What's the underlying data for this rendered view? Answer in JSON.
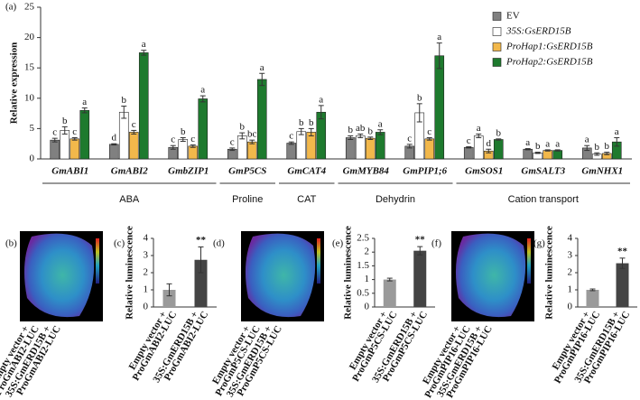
{
  "chart_data": [
    {
      "type": "bar",
      "panel_label": "(a)",
      "y_label": "Relative expression",
      "categories": [
        "GmABI1",
        "GmABI2",
        "GmbZIP1",
        "GmP5CS",
        "GmCAT4",
        "GmMYB84",
        "GmPIP1;6",
        "GmSOS1",
        "GmSALT3",
        "GmNHX1"
      ],
      "groups": [
        {
          "label": "ABA",
          "span": 3
        },
        {
          "label": "Proline",
          "span": 1
        },
        {
          "label": "CAT",
          "span": 1
        },
        {
          "label": "Dehydrin",
          "span": 2
        },
        {
          "label": "Cation transport",
          "span": 3
        }
      ],
      "series": [
        {
          "name": "EV",
          "color": "#808080",
          "values": [
            3.1,
            2.4,
            1.9,
            1.6,
            2.6,
            3.5,
            2.1,
            1.9,
            1.6,
            1.8
          ],
          "errors": [
            0.3,
            0.1,
            0.3,
            0.2,
            0.2,
            0.3,
            0.3,
            0.1,
            0.1,
            0.4
          ],
          "letters": [
            "c",
            "d",
            "c",
            "c",
            "c",
            "b",
            "c",
            "c",
            "a",
            "a"
          ]
        },
        {
          "name": "35S:GsERD15B",
          "color": "#ffffff",
          "values": [
            4.7,
            7.7,
            3.2,
            3.8,
            4.5,
            3.8,
            7.6,
            3.8,
            1.0,
            0.8
          ],
          "errors": [
            0.6,
            1.0,
            0.3,
            0.5,
            0.5,
            0.3,
            1.5,
            0.3,
            0.1,
            0.2
          ],
          "letters": [
            "b",
            "b",
            "b",
            "b",
            "b",
            "ab",
            "b",
            "a",
            "b",
            "b"
          ]
        },
        {
          "name": "ProHap1:GsERD15B",
          "color": "#f2b84b",
          "values": [
            3.3,
            4.4,
            2.1,
            2.8,
            4.4,
            3.4,
            3.3,
            1.3,
            1.4,
            0.9
          ],
          "errors": [
            0.2,
            0.3,
            0.2,
            0.3,
            0.6,
            0.2,
            0.2,
            0.3,
            0.1,
            0.2
          ],
          "letters": [
            "c",
            "c",
            "c",
            "bc",
            "b",
            "b",
            "c",
            "d",
            "a",
            "b"
          ]
        },
        {
          "name": "ProHap2:GsERD15B",
          "color": "#1e7a2e",
          "values": [
            8.0,
            17.5,
            9.9,
            13.1,
            7.7,
            4.4,
            17.0,
            3.2,
            1.4,
            2.8
          ],
          "errors": [
            0.4,
            0.4,
            0.5,
            1.0,
            1.1,
            0.4,
            2.1,
            0.1,
            0.1,
            0.7
          ],
          "letters": [
            "a",
            "a",
            "a",
            "a",
            "a",
            "a",
            "a",
            "b",
            "a",
            "a"
          ]
        }
      ],
      "ylim": [
        0,
        25
      ],
      "yticks": [
        0,
        5,
        10,
        15,
        20,
        25
      ]
    },
    {
      "type": "bar",
      "panel_label": "(c)",
      "y_label": "Relative luminescence",
      "categories": [
        [
          "Empty vector +",
          "ProGmABI2-LUC"
        ],
        [
          "35S:GmERD15B +",
          "ProGmABI2-LUC"
        ]
      ],
      "values": [
        1.0,
        2.75
      ],
      "errors": [
        0.35,
        0.75
      ],
      "colors": [
        "#9a9a9a",
        "#444444"
      ],
      "significance": "**",
      "ylim": [
        0,
        4
      ],
      "yticks": [
        0,
        1,
        2,
        3,
        4
      ]
    },
    {
      "type": "bar",
      "panel_label": "(e)",
      "y_label": "Relative luminescence",
      "categories": [
        [
          "Empty vector +",
          "ProGmP5CS-LUC"
        ],
        [
          "35S:GmERD15B +",
          "ProGmP5CS-LUC"
        ]
      ],
      "values": [
        1.0,
        2.05
      ],
      "errors": [
        0.05,
        0.15
      ],
      "colors": [
        "#9a9a9a",
        "#444444"
      ],
      "significance": "**",
      "ylim": [
        0,
        2.5
      ],
      "yticks": [
        0,
        0.5,
        1,
        1.5,
        2,
        2.5
      ]
    },
    {
      "type": "bar",
      "panel_label": "(g)",
      "y_label": "Relative luminescence",
      "categories": [
        [
          "Empty vector +",
          "ProGmPIP16-LUC"
        ],
        [
          "35S:GmERD15B +",
          "ProGmPIP16-LUC"
        ]
      ],
      "values": [
        1.0,
        2.55
      ],
      "errors": [
        0.05,
        0.3
      ],
      "colors": [
        "#9a9a9a",
        "#444444"
      ],
      "significance": "**",
      "ylim": [
        0,
        4
      ],
      "yticks": [
        0,
        1,
        2,
        3,
        4
      ]
    }
  ],
  "images": [
    {
      "panel_label": "(b)",
      "caption": [
        [
          "Empty vector +",
          "ProGmABI2-LUC"
        ],
        [
          "35S:GmERD15B +",
          "ProGmABI2-LUC"
        ]
      ]
    },
    {
      "panel_label": "(d)",
      "caption": [
        [
          "Empty vector +",
          "ProGmP5CS-LUC"
        ],
        [
          "35S:GmERD15B +",
          "ProGmP5CS-LUC"
        ]
      ]
    },
    {
      "panel_label": "(f)",
      "caption": [
        [
          "Empty vector +",
          "ProGmPIP16-LUC"
        ],
        [
          "35S:GmERD15B +",
          "ProGmPIP16-LUC"
        ]
      ]
    }
  ]
}
